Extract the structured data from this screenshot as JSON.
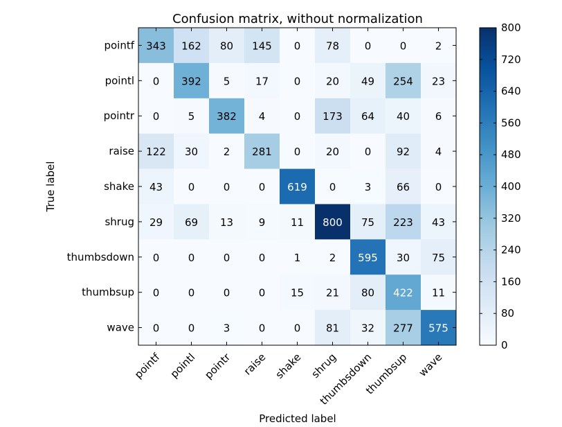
{
  "chart_data": {
    "type": "heatmap",
    "title": "Confusion matrix, without normalization",
    "xlabel": "Predicted label",
    "ylabel": "True label",
    "x_categories": [
      "pointf",
      "pointl",
      "pointr",
      "raise",
      "shake",
      "shrug",
      "thumbsdown",
      "thumbsup",
      "wave"
    ],
    "y_categories": [
      "pointf",
      "pointl",
      "pointr",
      "raise",
      "shake",
      "shrug",
      "thumbsdown",
      "thumbsup",
      "wave"
    ],
    "values": [
      [
        343,
        162,
        80,
        145,
        0,
        78,
        0,
        0,
        2
      ],
      [
        0,
        392,
        5,
        17,
        0,
        20,
        49,
        254,
        23
      ],
      [
        0,
        5,
        382,
        4,
        0,
        173,
        64,
        40,
        6
      ],
      [
        122,
        30,
        2,
        281,
        0,
        20,
        0,
        92,
        4
      ],
      [
        43,
        0,
        0,
        0,
        619,
        0,
        3,
        66,
        0
      ],
      [
        29,
        69,
        13,
        9,
        11,
        800,
        75,
        223,
        43
      ],
      [
        0,
        0,
        0,
        0,
        1,
        2,
        595,
        30,
        75
      ],
      [
        0,
        0,
        0,
        0,
        15,
        21,
        80,
        422,
        11
      ],
      [
        0,
        0,
        3,
        0,
        0,
        81,
        32,
        277,
        575
      ]
    ],
    "colorbar": {
      "min": 0,
      "max": 800,
      "ticks": [
        0,
        80,
        160,
        240,
        320,
        400,
        480,
        560,
        640,
        720,
        800
      ],
      "colormap": "Blues",
      "low_color": "#f7fbff",
      "high_color": "#08306b"
    },
    "text_threshold": 400,
    "cell_text_dark": "#000000",
    "cell_text_light": "#ffffff"
  }
}
